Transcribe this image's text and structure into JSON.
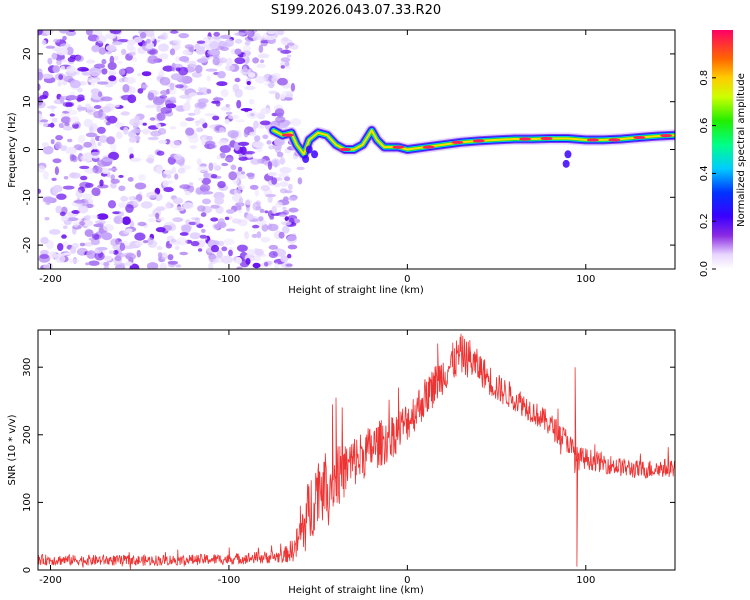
{
  "figure_title": "S199.2026.043.07.33.R20",
  "colors": {
    "snr_line": "#ee3333",
    "speckle": "#7b2cf0",
    "axis": "#000000"
  },
  "chart_data": [
    {
      "type": "heatmap",
      "title": "",
      "xlabel": "Height of straight line (km)",
      "ylabel": "Frequency (Hz)",
      "xlim": [
        -207,
        150
      ],
      "ylim": [
        -25,
        25
      ],
      "xticks": [
        -200,
        -100,
        0,
        100
      ],
      "xtick_labels": [
        "-200",
        "-100",
        "0",
        "100"
      ],
      "yticks": [
        -20,
        -10,
        0,
        10,
        20
      ],
      "ytick_labels": [
        "-20",
        "-10",
        "0",
        "10",
        "20"
      ],
      "colorbar": {
        "label": "Normalized spectral amplitude",
        "range": [
          0,
          1
        ],
        "ticks": [
          0.0,
          0.2,
          0.4,
          0.6,
          0.8
        ],
        "tick_labels": [
          "0.0",
          "0.2",
          "0.4",
          "0.6",
          "0.8"
        ]
      },
      "noise_region_x": [
        -207,
        -63
      ],
      "ridge": {
        "description": "narrow high-amplitude tone drifting near 0–4 Hz",
        "points": [
          [
            -75,
            4
          ],
          [
            -70,
            3
          ],
          [
            -65,
            3.5
          ],
          [
            -62,
            1
          ],
          [
            -58,
            -1
          ],
          [
            -55,
            2
          ],
          [
            -50,
            3.5
          ],
          [
            -45,
            3
          ],
          [
            -40,
            1
          ],
          [
            -35,
            0
          ],
          [
            -30,
            0
          ],
          [
            -25,
            1
          ],
          [
            -20,
            4
          ],
          [
            -17,
            2
          ],
          [
            -13,
            0.5
          ],
          [
            -5,
            0.5
          ],
          [
            0,
            0
          ],
          [
            10,
            0.5
          ],
          [
            20,
            1
          ],
          [
            30,
            1.5
          ],
          [
            40,
            1.8
          ],
          [
            50,
            2
          ],
          [
            60,
            2.2
          ],
          [
            70,
            2.2
          ],
          [
            80,
            2.3
          ],
          [
            90,
            2.3
          ],
          [
            100,
            2
          ],
          [
            110,
            2
          ],
          [
            120,
            2.2
          ],
          [
            130,
            2.5
          ],
          [
            140,
            2.8
          ],
          [
            150,
            3
          ]
        ],
        "peak_amplitude": 1.0
      }
    },
    {
      "type": "line",
      "title": "",
      "xlabel": "Height of straight line (km)",
      "ylabel": "SNR (10 * v/v)",
      "xlim": [
        -207,
        150
      ],
      "ylim": [
        0,
        355
      ],
      "xticks": [
        -200,
        -100,
        0,
        100
      ],
      "xtick_labels": [
        "-200",
        "-100",
        "0",
        "100"
      ],
      "yticks": [
        0,
        100,
        200,
        300
      ],
      "ytick_labels": [
        "0",
        "100",
        "200",
        "300"
      ],
      "series": [
        {
          "name": "SNR",
          "envelope": {
            "x": [
              -207,
              -150,
              -100,
              -70,
              -63,
              -55,
              -50,
              -40,
              -30,
              -20,
              -10,
              0,
              10,
              20,
              30,
              40,
              50,
              60,
              70,
              80,
              90,
              95,
              100,
              110,
              120,
              130,
              140,
              150
            ],
            "mean": [
              15,
              14,
              16,
              20,
              32,
              85,
              125,
              135,
              160,
              180,
              195,
              220,
              255,
              290,
              320,
              300,
              270,
              255,
              235,
              215,
              190,
              165,
              165,
              158,
              152,
              148,
              150,
              152
            ],
            "noise": [
              8,
              8,
              8,
              10,
              20,
              55,
              50,
              45,
              40,
              35,
              35,
              30,
              30,
              30,
              30,
              25,
              22,
              20,
              18,
              18,
              18,
              18,
              16,
              15,
              14,
              14,
              14,
              14
            ]
          },
          "notable_spikes": [
            [
              -60,
              95
            ],
            [
              -42,
              245
            ],
            [
              -40,
              255
            ],
            [
              -5,
              270
            ],
            [
              17,
              335
            ],
            [
              35,
              340
            ],
            [
              94,
              300
            ],
            [
              95,
              5
            ]
          ]
        }
      ]
    }
  ]
}
